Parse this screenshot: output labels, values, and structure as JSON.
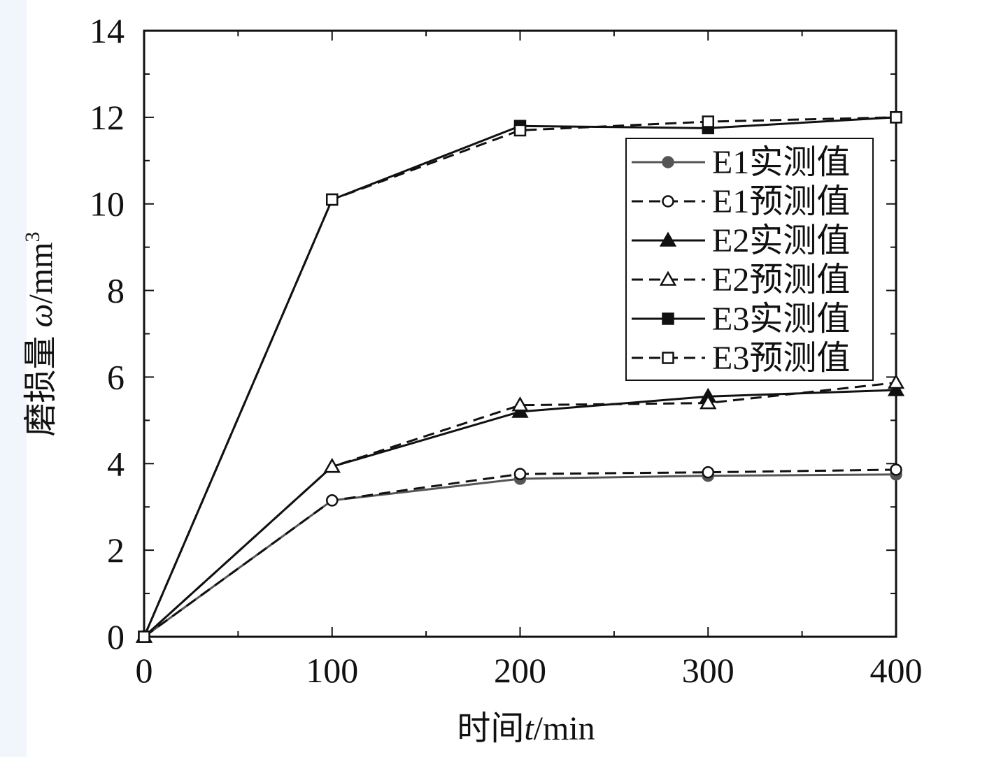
{
  "chart_data": {
    "type": "line",
    "x": [
      0,
      100,
      200,
      300,
      400
    ],
    "xlim": [
      0,
      400
    ],
    "ylim": [
      0,
      14
    ],
    "x_ticks": [
      "0",
      "100",
      "200",
      "300",
      "400"
    ],
    "y_ticks": [
      "0",
      "2",
      "4",
      "6",
      "8",
      "10",
      "12",
      "14"
    ],
    "xlabel": {
      "prefix": "时间",
      "var": "t",
      "unit": "/min"
    },
    "ylabel": {
      "prefix": "磨损量 ",
      "var": "ω",
      "unit": "/mm",
      "sup": "3"
    },
    "legend_position": "right-upper",
    "grid": false,
    "series": [
      {
        "name": "E1实测值",
        "values": [
          0,
          3.15,
          3.65,
          3.72,
          3.75
        ],
        "marker": "circle-filled",
        "line": "solid",
        "color": "#555555"
      },
      {
        "name": "E1预测值",
        "values": [
          0,
          3.15,
          3.76,
          3.8,
          3.86
        ],
        "marker": "circle-open",
        "line": "dashed",
        "color": "#111111"
      },
      {
        "name": "E2实测值",
        "values": [
          0,
          3.93,
          5.2,
          5.55,
          5.7
        ],
        "marker": "triangle-filled",
        "line": "solid",
        "color": "#111111"
      },
      {
        "name": "E2预测值",
        "values": [
          0,
          3.93,
          5.35,
          5.4,
          5.87
        ],
        "marker": "triangle-open",
        "line": "dashed",
        "color": "#111111"
      },
      {
        "name": "E3实测值",
        "values": [
          0,
          10.1,
          11.8,
          11.75,
          12.0
        ],
        "marker": "square-filled",
        "line": "solid",
        "color": "#111111"
      },
      {
        "name": "E3预测值",
        "values": [
          0,
          10.1,
          11.7,
          11.9,
          12.0
        ],
        "marker": "square-open",
        "line": "dashed",
        "color": "#111111"
      }
    ]
  }
}
